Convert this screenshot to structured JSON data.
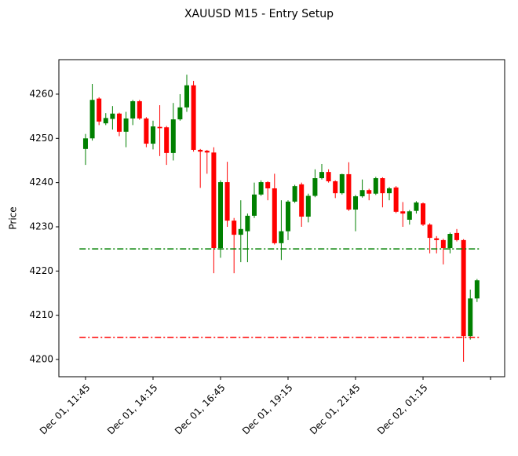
{
  "chart_data": {
    "type": "candlestick",
    "title": "XAUUSD M15 - Entry Setup",
    "y_label": "Price",
    "up_color": "green",
    "down_color": "red",
    "open": [
      4247.6,
      4250.0,
      4259.0,
      4253.4,
      4254.4,
      4255.6,
      4251.5,
      4254.5,
      4258.4,
      4254.5,
      4248.8,
      4252.6,
      4252.5,
      4246.7,
      4254.3,
      4257.0,
      4262.0,
      4247.4,
      4247.2,
      4246.8,
      4225.2,
      4240.1,
      4231.4,
      4228.2,
      4229.0,
      4232.5,
      4237.3,
      4240.1,
      4238.7,
      4226.3,
      4229.0,
      4235.7,
      4239.6,
      4232.3,
      4237.0,
      4241.0,
      4242.4,
      4240.3,
      4237.6,
      4241.9,
      4233.9,
      4236.9,
      4238.3,
      4237.5,
      4241.0,
      4237.6,
      4238.9,
      4233.5,
      4231.6,
      4233.6,
      4235.3,
      4230.5,
      4227.4,
      4227.0,
      4225.2,
      4228.6,
      4227.0,
      4205.3,
      4213.8
    ],
    "high": [
      4251.0,
      4262.3,
      4259.3,
      4255.7,
      4257.3,
      4255.8,
      4256.0,
      4258.7,
      4258.7,
      4254.8,
      4254.0,
      4257.5,
      4252.8,
      4258.0,
      4260.0,
      4264.4,
      4263.0,
      4247.6,
      4247.4,
      4248.0,
      4240.5,
      4244.7,
      4232.0,
      4236.0,
      4233.0,
      4240.0,
      4240.5,
      4240.3,
      4242.0,
      4236.0,
      4236.0,
      4239.5,
      4240.0,
      4237.5,
      4243.0,
      4244.2,
      4243.0,
      4240.5,
      4242.0,
      4244.6,
      4237.2,
      4240.7,
      4238.6,
      4241.3,
      4241.2,
      4239.0,
      4239.2,
      4235.6,
      4233.8,
      4235.8,
      4235.5,
      4230.8,
      4227.9,
      4227.3,
      4228.7,
      4229.5,
      4227.2,
      4215.8,
      4218.2
    ],
    "low": [
      4244.0,
      4249.5,
      4253.0,
      4253.0,
      4252.0,
      4250.5,
      4248.0,
      4253.0,
      4254.2,
      4248.0,
      4247.5,
      4246.0,
      4244.0,
      4245.0,
      4254.0,
      4256.0,
      4247.0,
      4238.8,
      4242.0,
      4219.5,
      4223.0,
      4230.0,
      4219.5,
      4222.0,
      4222.0,
      4232.0,
      4237.0,
      4236.0,
      4226.0,
      4222.5,
      4227.0,
      4235.4,
      4230.0,
      4231.0,
      4236.7,
      4240.7,
      4240.0,
      4236.5,
      4237.3,
      4233.6,
      4229.0,
      4236.6,
      4236.0,
      4237.2,
      4234.4,
      4236.0,
      4233.1,
      4230.0,
      4230.5,
      4233.0,
      4230.2,
      4224.0,
      4224.0,
      4221.5,
      4224.0,
      4226.7,
      4199.5,
      4204.5,
      4213.0
    ],
    "close": [
      4250.0,
      4258.7,
      4253.8,
      4254.6,
      4255.6,
      4251.5,
      4254.5,
      4258.4,
      4254.5,
      4248.8,
      4252.7,
      4252.3,
      4246.7,
      4254.3,
      4257.0,
      4262.0,
      4247.4,
      4247.0,
      4246.8,
      4225.2,
      4240.1,
      4231.4,
      4228.2,
      4229.5,
      4232.5,
      4237.3,
      4240.1,
      4238.7,
      4226.3,
      4229.0,
      4235.7,
      4239.2,
      4232.3,
      4237.0,
      4241.0,
      4242.4,
      4240.3,
      4237.6,
      4241.9,
      4233.9,
      4236.9,
      4238.3,
      4237.5,
      4241.0,
      4237.6,
      4238.7,
      4233.4,
      4233.0,
      4233.5,
      4235.5,
      4230.5,
      4227.5,
      4227.0,
      4225.2,
      4228.4,
      4227.0,
      4205.3,
      4213.8,
      4217.9
    ],
    "hlines": [
      {
        "value": 4225,
        "color": "green"
      },
      {
        "value": 4205,
        "color": "red"
      }
    ],
    "xlim": [
      -3.95,
      62.09
    ],
    "ylim": [
      4196.1,
      4267.8
    ],
    "xticks": [
      {
        "value": 0,
        "label": "Dec 01, 11:45"
      },
      {
        "value": 10,
        "label": "Dec 01, 14:15"
      },
      {
        "value": 20,
        "label": "Dec 01, 16:45"
      },
      {
        "value": 30,
        "label": "Dec 01, 19:15"
      },
      {
        "value": 40,
        "label": "Dec 01, 21:45"
      },
      {
        "value": 50,
        "label": "Dec 02, 01:15"
      },
      {
        "value": 60,
        "label": null
      }
    ],
    "yticks": [
      4200,
      4210,
      4220,
      4230,
      4240,
      4250,
      4260
    ]
  }
}
